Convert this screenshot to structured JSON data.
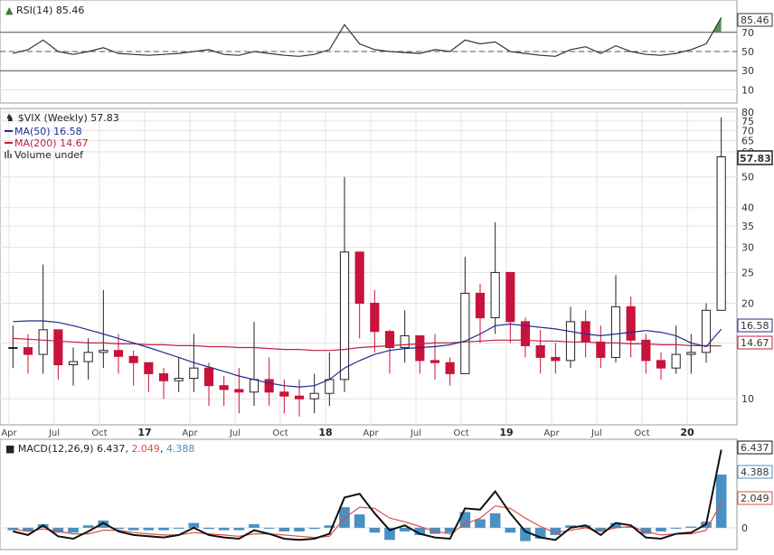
{
  "chart_data": [
    {
      "type": "line",
      "title": "RSI(14)",
      "value_label": "85.46",
      "ylim": [
        0,
        100
      ],
      "yticks": [
        10,
        30,
        50,
        70
      ],
      "reference_lines": [
        30,
        50,
        70
      ],
      "last_value": 85.46,
      "x": [
        "2016-04",
        "2016-05",
        "2016-06",
        "2016-07",
        "2016-08",
        "2016-09",
        "2016-10",
        "2016-11",
        "2016-12",
        "2017-01",
        "2017-02",
        "2017-03",
        "2017-04",
        "2017-05",
        "2017-06",
        "2017-07",
        "2017-08",
        "2017-09",
        "2017-10",
        "2017-11",
        "2017-12",
        "2018-01",
        "2018-02",
        "2018-03",
        "2018-04",
        "2018-05",
        "2018-06",
        "2018-07",
        "2018-08",
        "2018-09",
        "2018-10",
        "2018-11",
        "2018-12",
        "2019-01",
        "2019-02",
        "2019-03",
        "2019-04",
        "2019-05",
        "2019-06",
        "2019-07",
        "2019-08",
        "2019-09",
        "2019-10",
        "2019-11",
        "2019-12",
        "2020-01",
        "2020-02",
        "2020-03"
      ],
      "values": [
        48,
        52,
        62,
        50,
        47,
        50,
        54,
        48,
        47,
        46,
        47,
        48,
        50,
        52,
        47,
        46,
        50,
        48,
        46,
        45,
        47,
        52,
        78,
        58,
        52,
        50,
        49,
        48,
        52,
        50,
        62,
        58,
        60,
        50,
        48,
        46,
        45,
        52,
        55,
        48,
        56,
        50,
        47,
        46,
        48,
        52,
        58,
        85.46
      ],
      "colors": {
        "line": "#333333",
        "fill_above_70": "#5e8e5e",
        "ref": "#555555"
      }
    },
    {
      "type": "candlestick",
      "title": "$VIX (Weekly)",
      "value_label": "57.83",
      "scale": "log",
      "ylim": [
        8.5,
        80
      ],
      "yticks": [
        10,
        15,
        20,
        25,
        30,
        35,
        40,
        50,
        60,
        65,
        70,
        75,
        80
      ],
      "xticks": [
        {
          "label": "Apr",
          "bold": false
        },
        {
          "label": "Jul",
          "bold": false
        },
        {
          "label": "Oct",
          "bold": false
        },
        {
          "label": "17",
          "bold": true
        },
        {
          "label": "Apr",
          "bold": false
        },
        {
          "label": "Jul",
          "bold": false
        },
        {
          "label": "Oct",
          "bold": false
        },
        {
          "label": "18",
          "bold": true
        },
        {
          "label": "Apr",
          "bold": false
        },
        {
          "label": "Jul",
          "bold": false
        },
        {
          "label": "Oct",
          "bold": false
        },
        {
          "label": "19",
          "bold": true
        },
        {
          "label": "Apr",
          "bold": false
        },
        {
          "label": "Jul",
          "bold": false
        },
        {
          "label": "Oct",
          "bold": false
        },
        {
          "label": "20",
          "bold": true
        }
      ],
      "x": [
        "2016-04",
        "2016-05",
        "2016-06",
        "2016-07",
        "2016-08",
        "2016-09",
        "2016-10",
        "2016-11",
        "2016-12",
        "2017-01",
        "2017-02",
        "2017-03",
        "2017-04",
        "2017-05",
        "2017-06",
        "2017-07",
        "2017-08",
        "2017-09",
        "2017-10",
        "2017-11",
        "2017-12",
        "2018-01",
        "2018-02",
        "2018-03",
        "2018-04",
        "2018-05",
        "2018-06",
        "2018-07",
        "2018-08",
        "2018-09",
        "2018-10",
        "2018-11",
        "2018-12",
        "2019-01",
        "2019-02",
        "2019-03",
        "2019-04",
        "2019-05",
        "2019-06",
        "2019-07",
        "2019-08",
        "2019-09",
        "2019-10",
        "2019-11",
        "2019-12",
        "2020-01",
        "2020-02",
        "2020-03"
      ],
      "close": [
        14.5,
        13.8,
        16.5,
        12.8,
        13.1,
        14.0,
        14.2,
        13.6,
        13.0,
        12.0,
        11.4,
        11.6,
        12.5,
        11.0,
        10.7,
        10.5,
        11.5,
        10.5,
        10.2,
        10.0,
        10.4,
        11.5,
        29.0,
        20.0,
        16.3,
        14.5,
        15.8,
        13.2,
        13.0,
        12.0,
        21.5,
        18.0,
        25.0,
        17.5,
        14.7,
        13.5,
        13.2,
        17.5,
        15.1,
        13.5,
        19.5,
        15.3,
        13.2,
        12.5,
        13.8,
        14.0,
        19.0,
        57.83
      ],
      "high": [
        17.0,
        16.0,
        26.5,
        14.5,
        14.5,
        15.5,
        22.0,
        16.0,
        14.2,
        13.0,
        12.5,
        13.5,
        16.0,
        13.0,
        11.8,
        12.5,
        17.5,
        13.5,
        11.5,
        11.5,
        12.0,
        14.0,
        50.0,
        26.0,
        22.0,
        16.5,
        19.0,
        15.0,
        16.0,
        13.5,
        28.0,
        23.0,
        36.0,
        23.5,
        18.0,
        16.5,
        15.0,
        19.5,
        19.0,
        17.0,
        24.5,
        21.0,
        16.0,
        14.0,
        17.0,
        16.0,
        20.0,
        77.0
      ],
      "low": [
        12.5,
        12.0,
        12.0,
        11.5,
        11.0,
        11.5,
        12.5,
        12.0,
        11.0,
        10.5,
        10.0,
        10.5,
        10.5,
        9.5,
        9.5,
        9.0,
        9.5,
        9.5,
        9.0,
        8.8,
        9.0,
        9.5,
        10.5,
        15.5,
        14.0,
        12.0,
        13.0,
        12.0,
        11.5,
        11.0,
        14.0,
        15.0,
        16.0,
        15.0,
        13.5,
        12.0,
        12.0,
        12.5,
        13.5,
        12.5,
        13.0,
        13.5,
        12.0,
        11.5,
        12.0,
        12.0,
        13.0,
        22.0
      ],
      "overlays": [
        {
          "name": "MA(50)",
          "value_label": "16.58",
          "color": "#1f2c8f",
          "values": [
            17.5,
            17.6,
            17.6,
            17.4,
            17.0,
            16.5,
            16.0,
            15.5,
            15.0,
            14.5,
            14.0,
            13.5,
            13.0,
            12.6,
            12.2,
            11.8,
            11.5,
            11.2,
            11.0,
            10.9,
            11.0,
            11.5,
            12.5,
            13.2,
            13.8,
            14.2,
            14.4,
            14.5,
            14.6,
            14.8,
            15.2,
            16.0,
            17.0,
            17.2,
            17.0,
            16.8,
            16.6,
            16.3,
            16.0,
            15.8,
            16.0,
            16.2,
            16.4,
            16.2,
            15.8,
            15.0,
            14.6,
            16.58
          ]
        },
        {
          "name": "MA(200)",
          "value_label": "14.67",
          "color": "#c0213e",
          "values": [
            15.5,
            15.4,
            15.3,
            15.2,
            15.1,
            15.0,
            15.0,
            14.9,
            14.9,
            14.8,
            14.8,
            14.7,
            14.7,
            14.6,
            14.6,
            14.5,
            14.5,
            14.4,
            14.3,
            14.3,
            14.2,
            14.2,
            14.3,
            14.5,
            14.6,
            14.7,
            14.8,
            14.9,
            15.0,
            15.0,
            15.1,
            15.2,
            15.3,
            15.3,
            15.3,
            15.2,
            15.2,
            15.1,
            15.1,
            15.0,
            15.0,
            14.9,
            14.9,
            14.8,
            14.8,
            14.7,
            14.7,
            14.67
          ]
        }
      ],
      "volume_label": "Volume undef",
      "colors": {
        "up": "#222222",
        "down": "#c8133c"
      }
    },
    {
      "type": "line",
      "title": "MACD(12,26,9)",
      "values_labels": {
        "macd": "6.437",
        "signal": "2.049",
        "histogram": "4.388"
      },
      "ylim": [
        -1.5,
        7
      ],
      "yticks": [
        0
      ],
      "x": [
        "2016-04",
        "2016-05",
        "2016-06",
        "2016-07",
        "2016-08",
        "2016-09",
        "2016-10",
        "2016-11",
        "2016-12",
        "2017-01",
        "2017-02",
        "2017-03",
        "2017-04",
        "2017-05",
        "2017-06",
        "2017-07",
        "2017-08",
        "2017-09",
        "2017-10",
        "2017-11",
        "2017-12",
        "2018-01",
        "2018-02",
        "2018-03",
        "2018-04",
        "2018-05",
        "2018-06",
        "2018-07",
        "2018-08",
        "2018-09",
        "2018-10",
        "2018-11",
        "2018-12",
        "2019-01",
        "2019-02",
        "2019-03",
        "2019-04",
        "2019-05",
        "2019-06",
        "2019-07",
        "2019-08",
        "2019-09",
        "2019-10",
        "2019-11",
        "2019-12",
        "2020-01",
        "2020-02",
        "2020-03"
      ],
      "series": [
        {
          "name": "MACD",
          "color": "#111111",
          "values": [
            -0.3,
            -0.6,
            0.2,
            -0.7,
            -0.9,
            -0.3,
            0.4,
            -0.3,
            -0.6,
            -0.7,
            -0.8,
            -0.6,
            0.0,
            -0.6,
            -0.8,
            -0.9,
            -0.2,
            -0.5,
            -0.9,
            -1.0,
            -0.9,
            -0.5,
            2.5,
            2.8,
            1.2,
            -0.2,
            0.2,
            -0.5,
            -0.8,
            -0.9,
            1.6,
            1.5,
            3.0,
            1.2,
            -0.3,
            -0.8,
            -1.0,
            0.0,
            0.2,
            -0.6,
            0.4,
            0.2,
            -0.8,
            -0.9,
            -0.5,
            -0.4,
            0.3,
            6.437
          ]
        },
        {
          "name": "Signal",
          "color": "#d9504a",
          "values": [
            -0.1,
            -0.3,
            -0.1,
            -0.3,
            -0.5,
            -0.5,
            -0.2,
            -0.2,
            -0.4,
            -0.5,
            -0.6,
            -0.6,
            -0.4,
            -0.5,
            -0.6,
            -0.7,
            -0.5,
            -0.5,
            -0.6,
            -0.7,
            -0.8,
            -0.7,
            0.8,
            1.7,
            1.6,
            0.8,
            0.5,
            0.1,
            -0.3,
            -0.5,
            0.3,
            0.8,
            1.8,
            1.6,
            0.8,
            0.1,
            -0.4,
            -0.2,
            0.0,
            -0.3,
            0.0,
            0.1,
            -0.3,
            -0.6,
            -0.5,
            -0.5,
            -0.2,
            2.049
          ]
        },
        {
          "name": "Histogram",
          "color": "#4a90c2",
          "values": [
            -0.2,
            -0.3,
            0.3,
            -0.4,
            -0.4,
            0.2,
            0.6,
            -0.1,
            -0.2,
            -0.2,
            -0.2,
            0.0,
            0.4,
            -0.1,
            -0.2,
            -0.2,
            0.3,
            0.0,
            -0.3,
            -0.3,
            -0.1,
            0.2,
            1.7,
            1.1,
            -0.4,
            -1.0,
            -0.3,
            -0.6,
            -0.5,
            -0.4,
            1.3,
            0.7,
            1.2,
            -0.4,
            -1.1,
            -0.9,
            -0.6,
            0.2,
            0.2,
            -0.3,
            0.4,
            0.1,
            -0.5,
            -0.3,
            0.0,
            0.1,
            0.5,
            4.388
          ]
        }
      ]
    }
  ]
}
